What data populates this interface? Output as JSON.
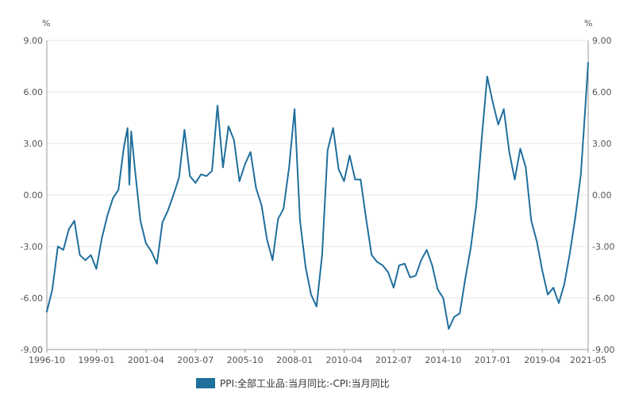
{
  "chart_data": {
    "type": "line",
    "title": "",
    "y_unit_left": "%",
    "y_unit_right": "%",
    "ylim": [
      -9,
      9
    ],
    "y_ticks": [
      9,
      6,
      3,
      0,
      -3,
      -6,
      -9
    ],
    "y_tick_labels": [
      "9.00",
      "6.00",
      "3.00",
      "0.00",
      "-3.00",
      "-6.00",
      "-9.00"
    ],
    "xlim": [
      "1996-10",
      "2021-05"
    ],
    "x_tick_labels": [
      "1996-10",
      "1999-01",
      "2001-04",
      "2003-07",
      "2005-10",
      "2008-01",
      "2010-04",
      "2012-07",
      "2014-10",
      "2017-01",
      "2019-04",
      "2021-05"
    ],
    "grid": {
      "horizontal": true,
      "vertical": false
    },
    "legend_position": "bottom-center",
    "colors": {
      "series": "#1f6f9c",
      "grid": "#e6e6e6",
      "axis": "#999999"
    },
    "series": [
      {
        "name": "PPI:全部工业品:当月同比:-CPI:当月同比",
        "x": [
          "1996-10",
          "1997-01",
          "1997-04",
          "1997-07",
          "1997-10",
          "1998-01",
          "1998-04",
          "1998-07",
          "1998-10",
          "1999-01",
          "1999-04",
          "1999-07",
          "1999-10",
          "2000-01",
          "2000-04",
          "2000-06",
          "2000-07",
          "2000-08",
          "2000-10",
          "2001-01",
          "2001-04",
          "2001-07",
          "2001-10",
          "2002-01",
          "2002-04",
          "2002-07",
          "2002-10",
          "2003-01",
          "2003-04",
          "2003-07",
          "2003-10",
          "2004-01",
          "2004-04",
          "2004-07",
          "2004-10",
          "2005-01",
          "2005-04",
          "2005-07",
          "2005-10",
          "2006-01",
          "2006-04",
          "2006-07",
          "2006-10",
          "2007-01",
          "2007-04",
          "2007-07",
          "2007-10",
          "2008-01",
          "2008-04",
          "2008-07",
          "2008-10",
          "2009-01",
          "2009-04",
          "2009-07",
          "2009-10",
          "2010-01",
          "2010-04",
          "2010-07",
          "2010-10",
          "2011-01",
          "2011-04",
          "2011-07",
          "2011-10",
          "2012-01",
          "2012-04",
          "2012-07",
          "2012-10",
          "2013-01",
          "2013-04",
          "2013-07",
          "2013-10",
          "2014-01",
          "2014-04",
          "2014-07",
          "2014-10",
          "2015-01",
          "2015-04",
          "2015-07",
          "2015-10",
          "2016-01",
          "2016-04",
          "2016-07",
          "2016-10",
          "2017-01",
          "2017-04",
          "2017-07",
          "2017-10",
          "2018-01",
          "2018-04",
          "2018-07",
          "2018-10",
          "2019-01",
          "2019-04",
          "2019-07",
          "2019-10",
          "2020-01",
          "2020-04",
          "2020-07",
          "2020-10",
          "2021-01",
          "2021-03",
          "2021-05"
        ],
        "values": [
          -6.8,
          -5.5,
          -3.0,
          -3.2,
          -2.0,
          -1.5,
          -3.5,
          -3.8,
          -3.5,
          -4.3,
          -2.5,
          -1.2,
          -0.2,
          0.3,
          2.8,
          3.9,
          0.6,
          3.7,
          1.5,
          -1.5,
          -2.8,
          -3.3,
          -4.0,
          -1.6,
          -0.9,
          0.0,
          1.0,
          3.8,
          1.1,
          0.7,
          1.2,
          1.1,
          1.4,
          5.2,
          1.6,
          4.0,
          3.2,
          0.8,
          1.8,
          2.5,
          0.4,
          -0.6,
          -2.6,
          -3.8,
          -1.4,
          -0.8,
          1.6,
          5.0,
          -1.5,
          -4.2,
          -5.8,
          -6.5,
          -3.5,
          2.6,
          3.9,
          1.5,
          0.8,
          2.3,
          0.9,
          0.9,
          -1.4,
          -3.5,
          -3.9,
          -4.1,
          -4.5,
          -5.4,
          -4.1,
          -4.0,
          -4.8,
          -4.7,
          -3.8,
          -3.2,
          -4.1,
          -5.5,
          -6.0,
          -7.8,
          -7.1,
          -6.9,
          -4.9,
          -3.1,
          -0.6,
          3.3,
          6.9,
          5.4,
          4.1,
          5.0,
          2.5,
          0.9,
          2.7,
          1.6,
          -1.5,
          -2.7,
          -4.4,
          -5.8,
          -5.4,
          -6.3,
          -5.2,
          -3.4,
          -1.3,
          1.2,
          4.4,
          7.7
        ]
      }
    ]
  }
}
